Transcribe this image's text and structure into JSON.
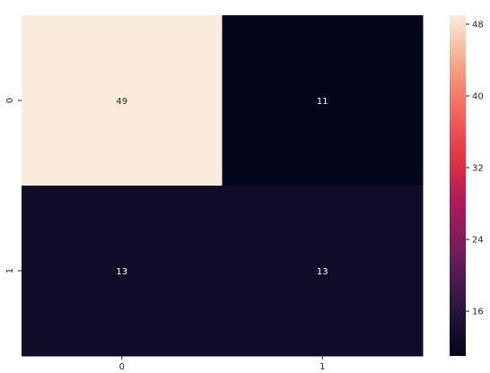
{
  "chart_data": {
    "type": "heatmap",
    "title": "",
    "xlabel": "",
    "ylabel": "",
    "x_categories": [
      "0",
      "1"
    ],
    "y_categories": [
      "0",
      "1"
    ],
    "values": [
      [
        49,
        11
      ],
      [
        13,
        13
      ]
    ],
    "annotations": true,
    "colormap": "rocket",
    "colorbar": {
      "vmin": 11,
      "vmax": 49,
      "ticks": [
        16,
        24,
        32,
        40,
        48
      ]
    },
    "annotation_colors": {
      "on_light": "#262626",
      "on_dark": "#ffffff"
    }
  }
}
